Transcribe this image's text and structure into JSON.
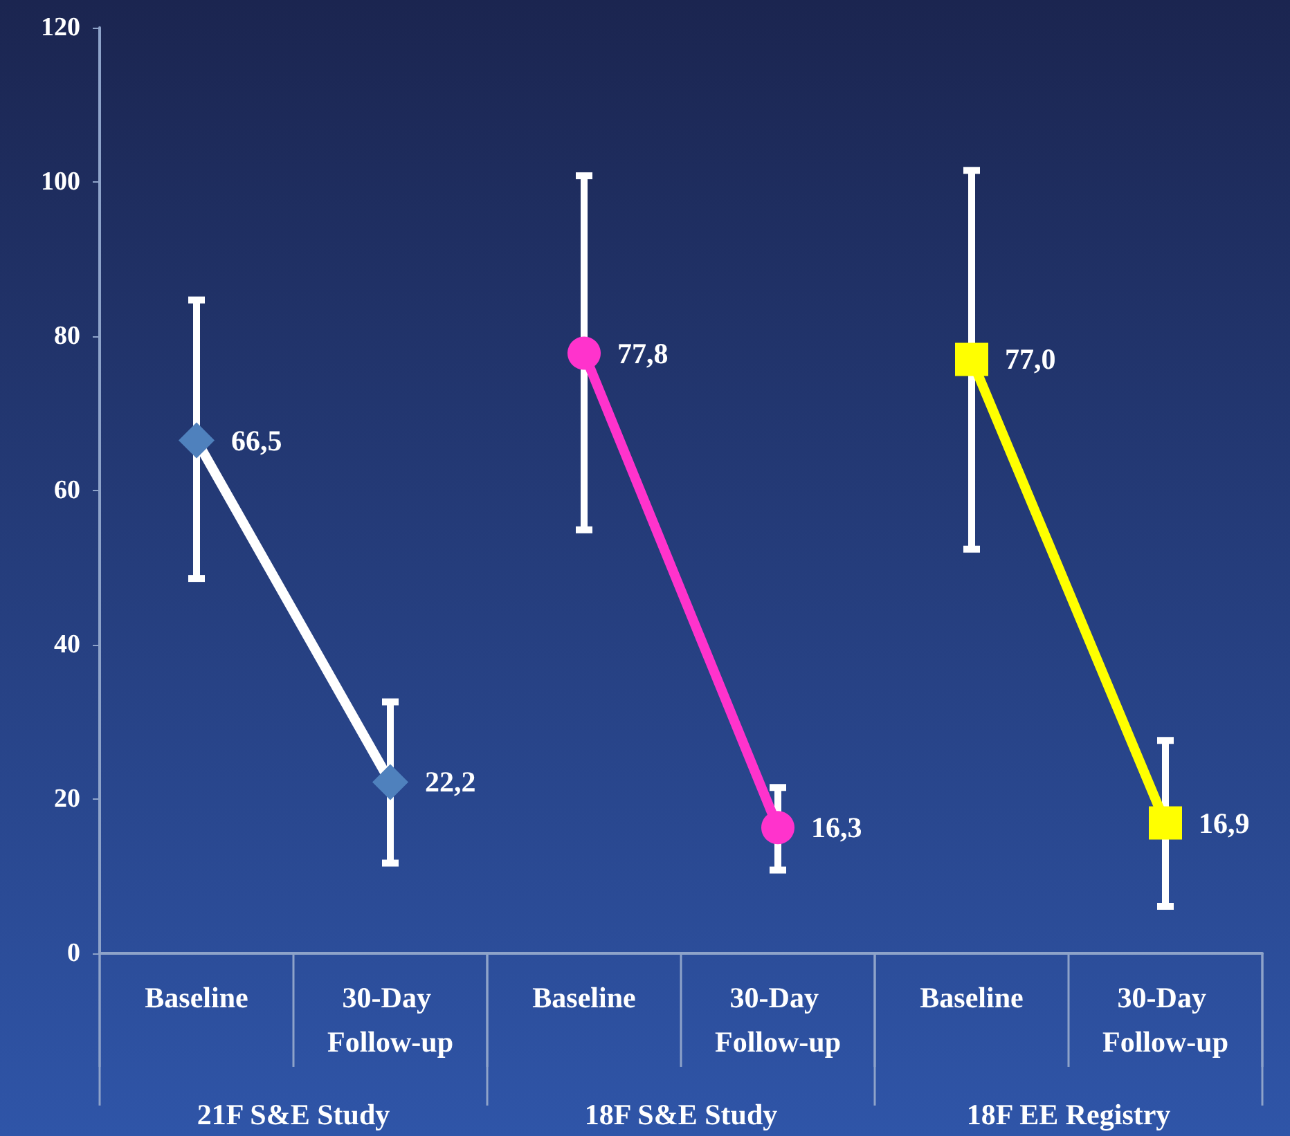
{
  "chart_data": {
    "type": "line",
    "categories": [
      "Baseline",
      "30-Day Follow-up",
      "Baseline",
      "30-Day Follow-up",
      "Baseline",
      "30-Day Follow-up"
    ],
    "annotations": [
      "21F S&E Study",
      "18F S&E Study",
      "18F EE Registry"
    ],
    "ylim": [
      0,
      120
    ],
    "yticks": [
      0,
      20,
      40,
      60,
      80,
      100,
      120
    ],
    "line_style": "solid",
    "series": [
      {
        "color": "#ffffff",
        "marker": "diamond",
        "colors": [
          "#4f81bd",
          "#4f81bd",
          null,
          null,
          null,
          null
        ],
        "values": [
          66.5,
          22.2,
          null,
          null,
          null,
          null
        ],
        "value_labels": [
          "66,5",
          "22,2",
          null,
          null,
          null,
          null
        ],
        "errors": [
          [
            48.6,
            84.7
          ],
          [
            11.7,
            32.6
          ],
          null,
          null,
          null,
          null
        ]
      },
      {
        "color": "#ff33cc",
        "marker": "circle",
        "values": [
          null,
          null,
          77.8,
          16.3,
          null,
          null
        ],
        "value_labels": [
          null,
          null,
          "77,8",
          "16,3",
          null,
          null
        ],
        "errors": [
          null,
          null,
          [
            54.9,
            100.8
          ],
          [
            10.8,
            21.5
          ],
          null,
          null
        ]
      },
      {
        "color": "#ffff00",
        "marker": "square",
        "values": [
          null,
          null,
          null,
          null,
          77.0,
          16.9
        ],
        "value_labels": [
          null,
          null,
          null,
          null,
          "77,0",
          "16,9"
        ],
        "errors": [
          null,
          null,
          null,
          null,
          [
            52.4,
            101.5
          ],
          [
            6.1,
            27.6
          ]
        ]
      }
    ]
  }
}
